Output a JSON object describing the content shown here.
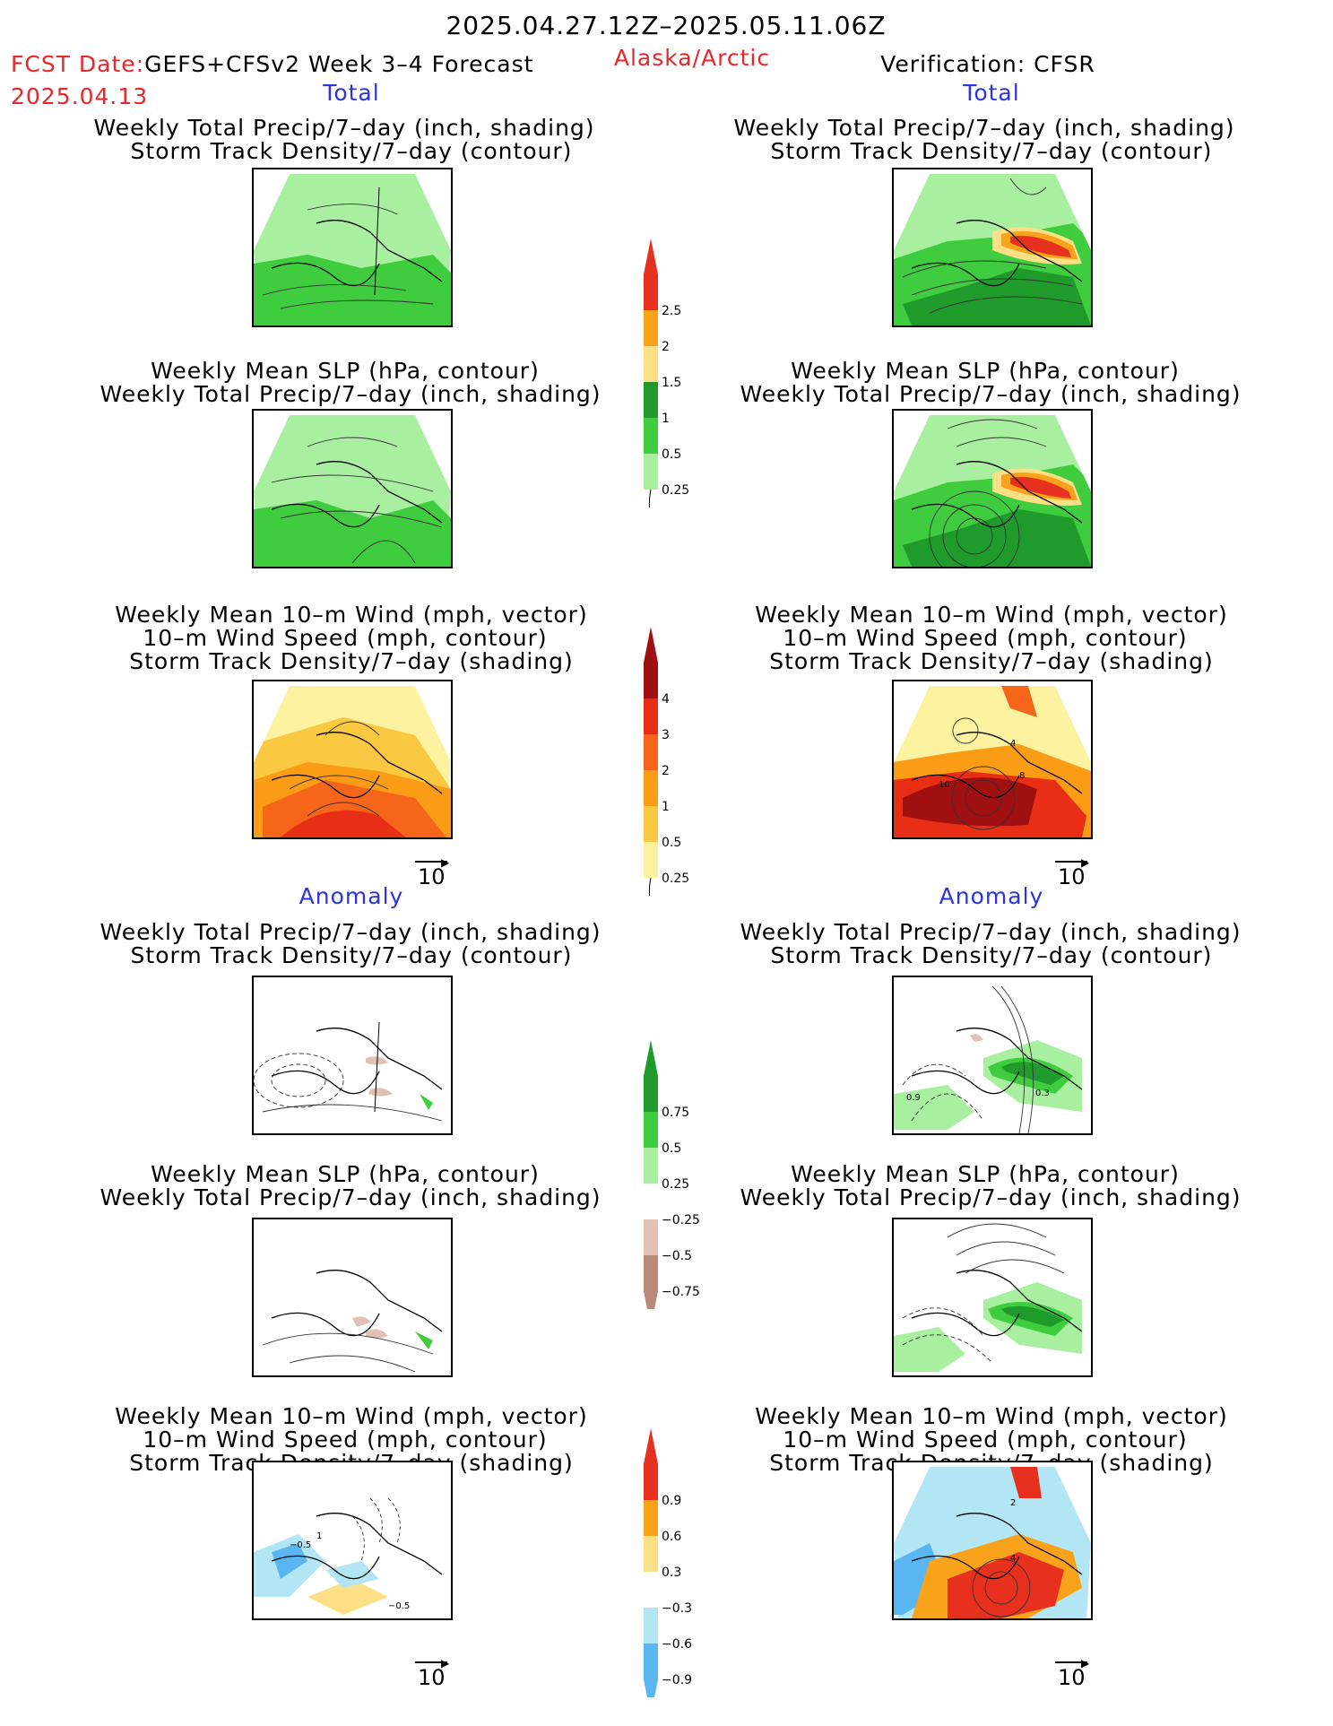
{
  "header": {
    "date_range": "2025.04.27.12Z–2025.05.11.06Z",
    "fcst_prefix": "FCST Date:",
    "fcst_model": "GEFS+CFSv2 Week 3–4 Forecast",
    "fcst_date": "2025.04.13",
    "region": "Alaska/Arctic",
    "verification": "Verification: CFSR"
  },
  "sections": {
    "total": "Total",
    "anomaly": "Anomaly"
  },
  "titles": {
    "precip_storm": [
      "Weekly Total Precip/7–day (inch, shading)",
      "Storm Track Density/7–day (contour)"
    ],
    "slp_precip": [
      "Weekly Mean SLP (hPa, contour)",
      "Weekly Total Precip/7–day (inch, shading)"
    ],
    "wind_storm": [
      "Weekly Mean 10–m Wind (mph, vector)",
      "10–m Wind Speed (mph, contour)",
      "Storm Track Density/7–day (shading)"
    ]
  },
  "vector_scale": "10",
  "colorbars": {
    "precip_total": {
      "labels": [
        "2.5",
        "2",
        "1.5",
        "1",
        "0.5",
        "0.25"
      ],
      "colors": [
        "#e8301e",
        "#f9a21b",
        "#fde086",
        "#1e9b2a",
        "#3fcc3e",
        "#a8f0a0"
      ]
    },
    "storm_total": {
      "labels": [
        "4",
        "3",
        "2",
        "1",
        "0.5",
        "0.25"
      ],
      "colors": [
        "#a01010",
        "#e82f16",
        "#f5661b",
        "#fa9c16",
        "#fbc842",
        "#fdf2a0"
      ]
    },
    "precip_anom": {
      "labels": [
        "0.75",
        "0.5",
        "0.25",
        "−0.25",
        "−0.5",
        "−0.75"
      ],
      "colors": [
        "#1e9b2a",
        "#3fcc3e",
        "#a8f0a0",
        "#ffffff",
        "#e3c0b4",
        "#b98a7a",
        "#7a4a3a"
      ]
    },
    "storm_anom": {
      "labels": [
        "0.9",
        "0.6",
        "0.3",
        "−0.3",
        "−0.6",
        "−0.9"
      ],
      "colors": [
        "#e8301e",
        "#f9a21b",
        "#fde086",
        "#ffffff",
        "#b3e6f5",
        "#5ab6f0",
        "#1566d6"
      ]
    }
  },
  "contour_labels": {
    "total_wind_obs": [
      "10",
      "4",
      "8"
    ],
    "anom_precip_obs": [
      "0.9",
      "0.3"
    ],
    "anom_wind_fc": [
      "−0.5",
      "−0.5",
      "1"
    ],
    "anom_wind_obs": [
      "2",
      "4"
    ]
  }
}
